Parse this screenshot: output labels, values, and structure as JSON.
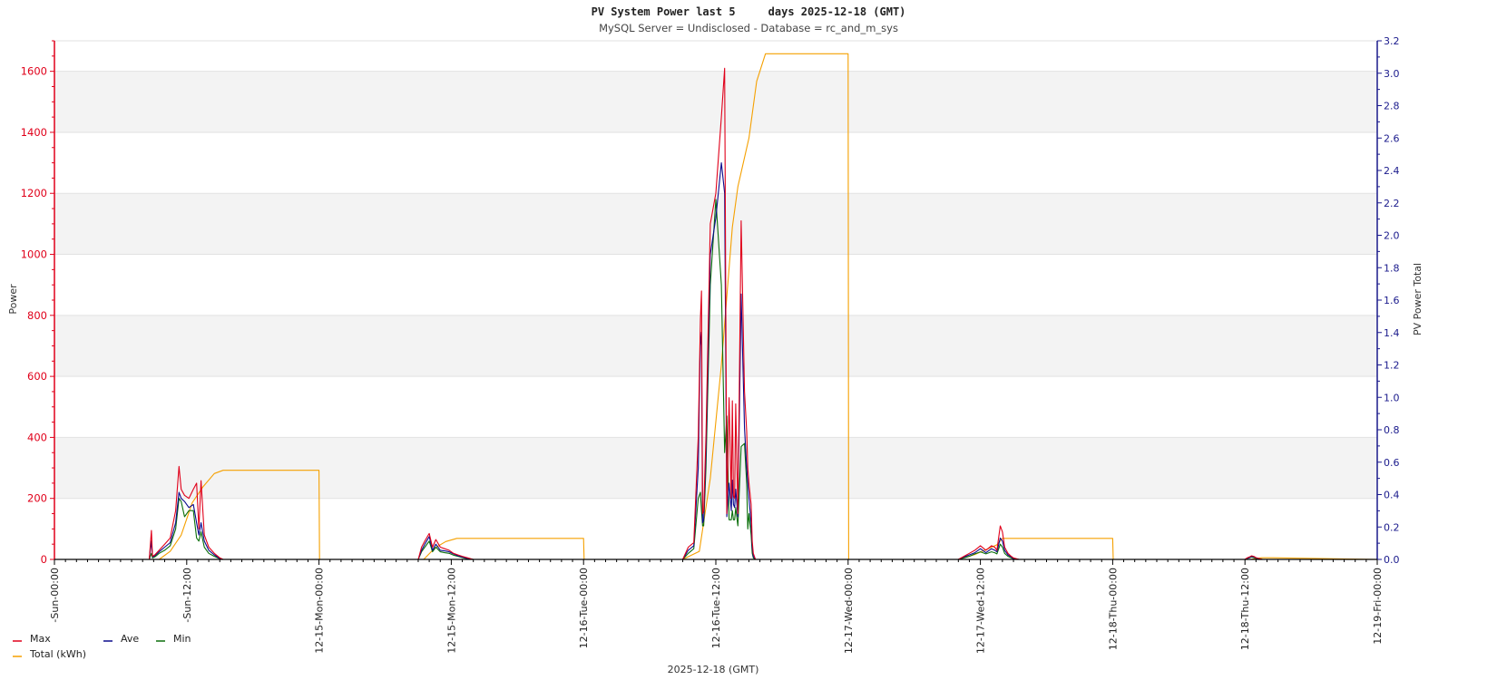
{
  "chart_data": {
    "type": "line",
    "title": "PV System Power last 5     days 2025-12-18 (GMT)",
    "subtitle": "MySQL Server = Undisclosed - Database = rc_and_m_sys",
    "xlabel": "2025-12-18 (GMT)",
    "ylabel_left": "Power",
    "ylabel_right": "PV Power Total",
    "ylim_left": [
      0,
      1700
    ],
    "ylim_right": [
      0,
      3.2
    ],
    "xlim_hours": [
      0,
      120
    ],
    "x_tick_labels": [
      "-Sun-00:00",
      "-Sun-12:00",
      "12-15-Mon-00:00",
      "12-15-Mon-12:00",
      "12-16-Tue-00:00",
      "12-16-Tue-12:00",
      "12-17-Wed-00:00",
      "12-17-Wed-12:00",
      "12-18-Thu-00:00",
      "12-18-Thu-12:00",
      "12-19-Fri-00:00"
    ],
    "y_ticks_left": [
      0,
      200,
      400,
      600,
      800,
      1000,
      1200,
      1400,
      1600
    ],
    "y_ticks_right": [
      "0.0",
      "0.2",
      "0.4",
      "0.6",
      "0.8",
      "1.0",
      "1.2",
      "1.4",
      "1.6",
      "1.8",
      "2.0",
      "2.2",
      "2.4",
      "2.6",
      "2.8",
      "3.0",
      "3.2"
    ],
    "grid": "alternating horizontal bands",
    "legend_position": "bottom-left",
    "series": [
      {
        "name": "Max",
        "color": "#e0001a",
        "axis": "left",
        "x": [
          0,
          8.6,
          8.8,
          8.9,
          9.1,
          9.5,
          10.0,
          10.5,
          11.0,
          11.3,
          11.5,
          11.8,
          12.2,
          12.6,
          12.9,
          13.1,
          13.3,
          13.6,
          14.0,
          14.5,
          15.0,
          15.3,
          24,
          33.0,
          33.3,
          33.6,
          34.0,
          34.3,
          34.6,
          35.0,
          35.4,
          35.8,
          36.2,
          36.6,
          37.0,
          37.5,
          38.0,
          57,
          57.5,
          58.0,
          58.4,
          58.6,
          58.7,
          58.8,
          58.9,
          59.1,
          59.5,
          60.0,
          60.5,
          60.8,
          61.0,
          61.2,
          61.4,
          61.5,
          61.6,
          61.7,
          61.8,
          62.0,
          62.3,
          62.6,
          62.8,
          62.9,
          63.0,
          63.2,
          63.3,
          63.4,
          63.6,
          63.8,
          64.0,
          64.3,
          64.6,
          82,
          82.5,
          83.0,
          83.5,
          84.0,
          84.5,
          85.0,
          85.3,
          85.5,
          85.8,
          86.0,
          86.2,
          86.5,
          86.8,
          87.0,
          87.5,
          88.0,
          108,
          108.2,
          108.4,
          108.6,
          108.8,
          109.0,
          109.3,
          109.6,
          120
        ],
        "values": [
          0,
          0,
          95,
          10,
          15,
          30,
          50,
          70,
          160,
          305,
          230,
          210,
          200,
          230,
          250,
          100,
          258,
          80,
          40,
          20,
          5,
          0,
          0,
          0,
          40,
          60,
          85,
          40,
          65,
          40,
          35,
          30,
          20,
          15,
          10,
          5,
          0,
          0,
          40,
          55,
          400,
          790,
          880,
          150,
          160,
          400,
          1100,
          1200,
          1450,
          1610,
          150,
          530,
          200,
          520,
          210,
          200,
          510,
          150,
          1110,
          550,
          420,
          300,
          250,
          180,
          60,
          20,
          0,
          0,
          0,
          0,
          0,
          0,
          10,
          20,
          30,
          45,
          30,
          45,
          40,
          30,
          110,
          90,
          40,
          20,
          10,
          5,
          0,
          0,
          0,
          5,
          8,
          12,
          10,
          6,
          3,
          0,
          0
        ]
      },
      {
        "name": "Ave",
        "color": "#0a0a8c",
        "axis": "left",
        "x": [
          0,
          8.6,
          8.8,
          8.9,
          9.1,
          9.5,
          10.0,
          10.5,
          11.0,
          11.3,
          11.5,
          11.8,
          12.2,
          12.6,
          12.9,
          13.1,
          13.3,
          13.6,
          14.0,
          14.5,
          15.0,
          15.3,
          24,
          33.0,
          33.3,
          33.6,
          34.0,
          34.3,
          34.6,
          35.0,
          35.4,
          35.8,
          36.2,
          36.6,
          37.0,
          37.5,
          38.0,
          57,
          57.5,
          58.0,
          58.4,
          58.6,
          58.7,
          58.8,
          58.9,
          59.1,
          59.5,
          60.0,
          60.5,
          60.8,
          61.0,
          61.2,
          61.4,
          61.5,
          61.6,
          61.7,
          61.8,
          62.0,
          62.3,
          62.6,
          62.8,
          62.9,
          63.0,
          63.2,
          63.3,
          63.4,
          63.6,
          63.8,
          64.0,
          64.3,
          64.6,
          82,
          82.5,
          83.0,
          83.5,
          84.0,
          84.5,
          85.0,
          85.3,
          85.5,
          85.8,
          86.0,
          86.2,
          86.5,
          86.8,
          87.0,
          87.5,
          88.0,
          108,
          108.2,
          108.4,
          108.6,
          108.8,
          109.0,
          109.3,
          109.6,
          120
        ],
        "values": [
          0,
          0,
          60,
          8,
          12,
          25,
          40,
          55,
          120,
          220,
          200,
          190,
          170,
          180,
          120,
          80,
          120,
          60,
          30,
          15,
          3,
          0,
          0,
          0,
          30,
          50,
          75,
          30,
          50,
          30,
          28,
          25,
          18,
          12,
          8,
          3,
          0,
          0,
          30,
          45,
          300,
          745,
          700,
          120,
          130,
          350,
          1000,
          1120,
          1300,
          1200,
          140,
          250,
          160,
          260,
          180,
          170,
          230,
          140,
          870,
          430,
          300,
          250,
          200,
          120,
          40,
          10,
          0,
          0,
          0,
          0,
          0,
          0,
          8,
          15,
          22,
          35,
          22,
          35,
          30,
          25,
          70,
          60,
          30,
          15,
          8,
          3,
          0,
          0,
          0,
          4,
          6,
          10,
          8,
          5,
          2,
          0,
          0
        ]
      },
      {
        "name": "Min",
        "color": "#0a6e0a",
        "axis": "left",
        "x": [
          0,
          8.6,
          8.8,
          8.9,
          9.1,
          9.5,
          10.0,
          10.5,
          11.0,
          11.3,
          11.5,
          11.8,
          12.2,
          12.6,
          12.9,
          13.1,
          13.3,
          13.6,
          14.0,
          14.5,
          15.0,
          15.3,
          24,
          33.0,
          33.3,
          33.6,
          34.0,
          34.3,
          34.6,
          35.0,
          35.4,
          35.8,
          36.2,
          36.6,
          37.0,
          37.5,
          38.0,
          57,
          57.5,
          58.0,
          58.4,
          58.6,
          58.7,
          58.8,
          58.9,
          59.1,
          59.5,
          60.0,
          60.5,
          60.8,
          61.0,
          61.2,
          61.4,
          61.5,
          61.6,
          61.7,
          61.8,
          62.0,
          62.3,
          62.6,
          62.8,
          62.9,
          63.0,
          63.2,
          63.3,
          63.4,
          63.6,
          63.8,
          64.0,
          64.3,
          64.6,
          82,
          82.5,
          83.0,
          83.5,
          84.0,
          84.5,
          85.0,
          85.3,
          85.5,
          85.8,
          86.0,
          86.2,
          86.5,
          86.8,
          87.0,
          87.5,
          88.0,
          108,
          108.2,
          108.4,
          108.6,
          108.8,
          109.0,
          109.3,
          109.6,
          120
        ],
        "values": [
          0,
          0,
          20,
          5,
          8,
          20,
          30,
          45,
          100,
          200,
          190,
          140,
          160,
          160,
          70,
          60,
          90,
          40,
          20,
          10,
          2,
          0,
          0,
          0,
          25,
          40,
          60,
          25,
          40,
          25,
          22,
          20,
          14,
          10,
          6,
          2,
          0,
          0,
          20,
          35,
          200,
          220,
          160,
          110,
          110,
          300,
          900,
          1180,
          900,
          350,
          470,
          130,
          130,
          160,
          130,
          130,
          170,
          110,
          370,
          380,
          250,
          100,
          150,
          80,
          20,
          5,
          0,
          0,
          0,
          0,
          0,
          0,
          5,
          10,
          18,
          25,
          18,
          25,
          22,
          18,
          50,
          40,
          20,
          10,
          5,
          2,
          0,
          0,
          0,
          3,
          5,
          8,
          6,
          4,
          1,
          0,
          0
        ]
      },
      {
        "name": "Total (kWh)",
        "color": "#f5a000",
        "axis": "right",
        "x": [
          0,
          9.5,
          10.5,
          11.5,
          12.5,
          13.5,
          14.5,
          15.3,
          24,
          24.05,
          48,
          33.5,
          34.5,
          35.5,
          36.5,
          48,
          48.05,
          57,
          58.5,
          59.5,
          60.5,
          61.5,
          62.0,
          63.0,
          63.7,
          64.5,
          72,
          72.05,
          82,
          83.5,
          84.5,
          85.5,
          86.0,
          96,
          96.05,
          108.5,
          109.5,
          110.5,
          120
        ],
        "values": [
          0,
          0,
          0.05,
          0.15,
          0.35,
          0.45,
          0.53,
          0.55,
          0.55,
          0,
          0,
          0,
          0.07,
          0.11,
          0.13,
          0.13,
          0,
          0,
          0.05,
          0.5,
          1.2,
          2.05,
          2.3,
          2.6,
          2.95,
          3.12,
          3.12,
          0,
          0,
          0.03,
          0.06,
          0.09,
          0.13,
          0.13,
          0,
          0,
          0.01,
          0.01,
          0
        ]
      }
    ]
  }
}
